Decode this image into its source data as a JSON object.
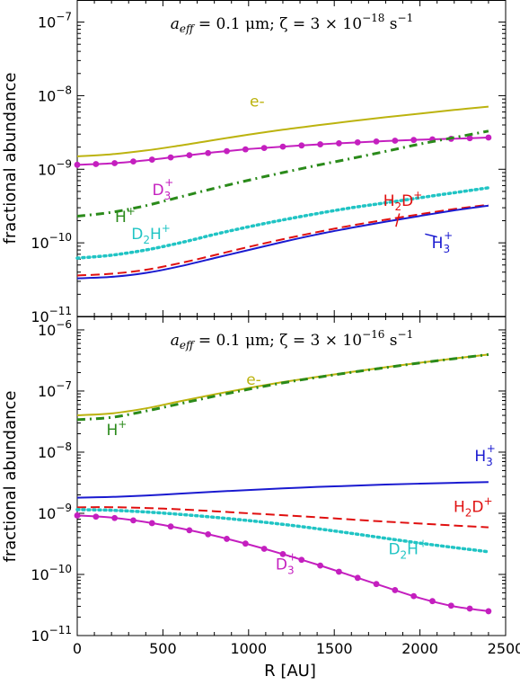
{
  "figure": {
    "xlabel": "R [AU]",
    "ylabel": "fractional abundance"
  },
  "chart_data": [
    {
      "type": "line",
      "title_parts": {
        "a": "a",
        "sub": "eff",
        "rest": " = 0.1 μm; ζ = 3 × 10",
        "exp": "−18",
        "unit": " s",
        "unit_exp": "−1"
      },
      "xlim": [
        0,
        2500
      ],
      "ylim_log10": [
        -11,
        -6.7
      ],
      "yscale": "log",
      "xticks": [
        0,
        500,
        1000,
        1500,
        2000,
        2500
      ],
      "yticks": [
        {
          "base": "10",
          "exp": "−11",
          "v": -11
        },
        {
          "base": "10",
          "exp": "−10",
          "v": -10
        },
        {
          "base": "10",
          "exp": "−9",
          "v": -9
        },
        {
          "base": "10",
          "exp": "−8",
          "v": -8
        },
        {
          "base": "10",
          "exp": "−7",
          "v": -7
        }
      ],
      "x": [
        0,
        200,
        400,
        600,
        800,
        1000,
        1200,
        1400,
        1600,
        1800,
        2000,
        2200,
        2400
      ],
      "series": [
        {
          "name": "e-",
          "label_base": "e-",
          "color": "#bcb30f",
          "style": "solid",
          "values": [
            1.5e-09,
            1.6e-09,
            1.8e-09,
            2.1e-09,
            2.5e-09,
            2.95e-09,
            3.45e-09,
            3.95e-09,
            4.5e-09,
            5.1e-09,
            5.7e-09,
            6.4e-09,
            7.1e-09
          ]
        },
        {
          "name": "D3+",
          "label_base": "D",
          "label_sub": "3",
          "label_sup": "+",
          "color": "#c41fbf",
          "style": "solid-dots",
          "values": [
            1.15e-09,
            1.2e-09,
            1.32e-09,
            1.5e-09,
            1.7e-09,
            1.88e-09,
            2.03e-09,
            2.17e-09,
            2.3e-09,
            2.42e-09,
            2.52e-09,
            2.6e-09,
            2.7e-09
          ]
        },
        {
          "name": "H+",
          "label_base": "H",
          "label_sup": "+",
          "color": "#2a8a1a",
          "style": "dashdot",
          "values": [
            2.3e-10,
            2.6e-10,
            3.2e-10,
            4.2e-10,
            5.5e-10,
            7.1e-10,
            9e-10,
            1.13e-09,
            1.4e-09,
            1.75e-09,
            2.2e-09,
            2.7e-09,
            3.3e-09
          ]
        },
        {
          "name": "D2H+",
          "label_base": "D",
          "label_sub": "2",
          "label_mid": "H",
          "label_sup": "+",
          "color": "#20c4c4",
          "style": "dotted",
          "values": [
            6.2e-11,
            6.8e-11,
            8e-11,
            1e-10,
            1.3e-10,
            1.65e-10,
            2.05e-10,
            2.5e-10,
            3e-10,
            3.5e-10,
            4.1e-10,
            4.8e-10,
            5.6e-10
          ]
        },
        {
          "name": "H2D+",
          "label_base": "H",
          "label_sub": "2",
          "label_mid": "D",
          "label_sup": "+",
          "color": "#e01010",
          "style": "dashed",
          "values": [
            3.6e-11,
            3.8e-11,
            4.3e-11,
            5.3e-11,
            6.8e-11,
            8.8e-11,
            1.12e-10,
            1.4e-10,
            1.72e-10,
            2.06e-10,
            2.45e-10,
            2.88e-10,
            3.3e-10
          ]
        },
        {
          "name": "H3+",
          "label_base": "H",
          "label_sub": "3",
          "label_sup": "+",
          "color": "#1a1ad0",
          "style": "solid",
          "values": [
            3.3e-11,
            3.45e-11,
            3.9e-11,
            4.8e-11,
            6.2e-11,
            8e-11,
            1.03e-10,
            1.3e-10,
            1.6e-10,
            1.94e-10,
            2.32e-10,
            2.76e-10,
            3.2e-10
          ]
        }
      ]
    },
    {
      "type": "line",
      "title_parts": {
        "a": "a",
        "sub": "eff",
        "rest": " = 0.1 μm; ζ = 3 × 10",
        "exp": "−16",
        "unit": " s",
        "unit_exp": "−1"
      },
      "xlim": [
        0,
        2500
      ],
      "ylim_log10": [
        -11,
        -5.78
      ],
      "yscale": "log",
      "xticks": [
        0,
        500,
        1000,
        1500,
        2000,
        2500
      ],
      "yticks": [
        {
          "base": "10",
          "exp": "−11",
          "v": -11
        },
        {
          "base": "10",
          "exp": "−10",
          "v": -10
        },
        {
          "base": "10",
          "exp": "−9",
          "v": -9
        },
        {
          "base": "10",
          "exp": "−8",
          "v": -8
        },
        {
          "base": "10",
          "exp": "−7",
          "v": -7
        },
        {
          "base": "10",
          "exp": "−6",
          "v": -6
        }
      ],
      "x": [
        0,
        200,
        400,
        600,
        800,
        1000,
        1200,
        1400,
        1600,
        1800,
        2000,
        2200,
        2400
      ],
      "series": [
        {
          "name": "e-",
          "label_base": "e-",
          "color": "#bcb30f",
          "style": "solid",
          "values": [
            4e-08,
            4.3e-08,
            5.2e-08,
            6.8e-08,
            8.8e-08,
            1.12e-07,
            1.4e-07,
            1.7e-07,
            2.05e-07,
            2.45e-07,
            2.9e-07,
            3.4e-07,
            3.95e-07
          ]
        },
        {
          "name": "H+",
          "label_base": "H",
          "label_sup": "+",
          "color": "#2a8a1a",
          "style": "dashdot",
          "values": [
            3.4e-08,
            3.7e-08,
            4.7e-08,
            6.2e-08,
            8.2e-08,
            1.07e-07,
            1.36e-07,
            1.67e-07,
            2.02e-07,
            2.42e-07,
            2.88e-07,
            3.38e-07,
            3.95e-07
          ]
        },
        {
          "name": "H3+",
          "label_base": "H",
          "label_sub": "3",
          "label_sup": "+",
          "color": "#1a1ad0",
          "style": "solid",
          "values": [
            1.8e-09,
            1.85e-09,
            1.95e-09,
            2.1e-09,
            2.25e-09,
            2.4e-09,
            2.55e-09,
            2.7e-09,
            2.82e-09,
            2.95e-09,
            3.05e-09,
            3.15e-09,
            3.25e-09
          ]
        },
        {
          "name": "H2D+",
          "label_base": "H",
          "label_sub": "2",
          "label_mid": "D",
          "label_sup": "+",
          "color": "#e01010",
          "style": "dashed",
          "values": [
            1.25e-09,
            1.26e-09,
            1.22e-09,
            1.16e-09,
            1.08e-09,
            1e-09,
            9.3e-10,
            8.6e-10,
            7.9e-10,
            7.3e-10,
            6.8e-10,
            6.3e-10,
            5.9e-10
          ]
        },
        {
          "name": "D2H+",
          "label_base": "D",
          "label_sub": "2",
          "label_mid": "H",
          "label_sup": "+",
          "color": "#20c4c4",
          "style": "dotted",
          "values": [
            1.15e-09,
            1.12e-09,
            1.05e-09,
            9.6e-10,
            8.6e-10,
            7.6e-10,
            6.6e-10,
            5.6e-10,
            4.7e-10,
            3.9e-10,
            3.25e-10,
            2.75e-10,
            2.35e-10
          ]
        },
        {
          "name": "D3+",
          "label_base": "D",
          "label_sub": "3",
          "label_sup": "+",
          "color": "#c41fbf",
          "style": "solid-dots",
          "values": [
            9.2e-10,
            8.5e-10,
            7.2e-10,
            5.7e-10,
            4.3e-10,
            3.1e-10,
            2.15e-10,
            1.45e-10,
            9.5e-11,
            6.2e-11,
            4.1e-11,
            3e-11,
            2.5e-11
          ]
        }
      ]
    }
  ]
}
